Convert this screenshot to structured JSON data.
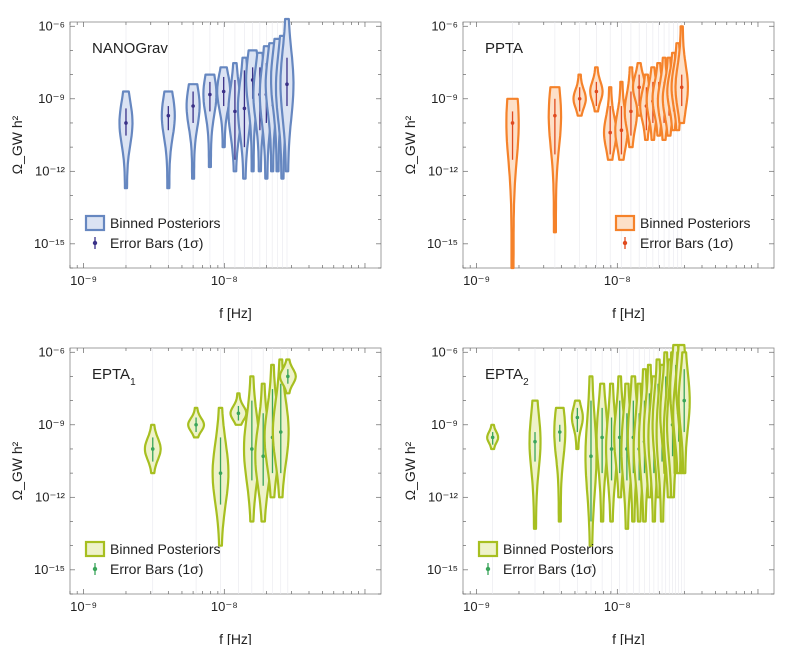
{
  "figure": {
    "description_colors": {
      "nanograv_line": "#6687c0",
      "nanograv_fill": "#dbe3f3",
      "nanograv_err": "#3a3188",
      "ppta_line": "#f5822a",
      "ppta_fill": "#fde0c8",
      "ppta_err": "#e04a1e",
      "epta_line": "#a7bf20",
      "epta_fill": "#eef2c9",
      "epta_err": "#3aa55a"
    }
  },
  "chart_data": [
    {
      "type": "violin",
      "title": "NANOGrav",
      "xlabel": "f [Hz]",
      "ylabel": "Ω_GW h²",
      "xscale": "log",
      "yscale": "log",
      "xlim": [
        8e-10,
        1.3e-07
      ],
      "ylim": [
        1e-16,
        1.5e-06
      ],
      "x_ticks": [
        "10⁻⁹",
        "10⁻⁸"
      ],
      "y_ticks": [
        "10⁻¹⁵",
        "10⁻¹²",
        "10⁻⁹",
        "10⁻⁶"
      ],
      "legend": [
        "Binned Posteriors",
        "Error Bars (1σ)"
      ],
      "legend_position": "bottom-left",
      "series": [
        {
          "name": "NANOGrav",
          "f": [
            2e-09,
            4e-09,
            6e-09,
            7.9e-09,
            9.9e-09,
            1.19e-08,
            1.39e-08,
            1.59e-08,
            1.79e-08,
            1.99e-08,
            2.19e-08,
            2.39e-08,
            2.59e-08,
            2.79e-08
          ],
          "median": [
            1e-10,
            2e-10,
            5e-10,
            1.5e-09,
            2e-09,
            3e-10,
            4e-10,
            6e-09,
            1.5e-09,
            1.5e-09,
            4e-09,
            6e-09,
            3e-09,
            4e-09
          ],
          "err_low": [
            3e-11,
            5e-11,
            1e-10,
            3e-10,
            5e-10,
            3e-12,
            1e-11,
            1e-09,
            5e-11,
            1e-10,
            5e-10,
            5e-10,
            3e-10,
            5e-10
          ],
          "err_high": [
            4e-10,
            5e-10,
            2e-09,
            5e-09,
            8e-09,
            6e-09,
            1.5e-08,
            2e-08,
            2e-08,
            3e-08,
            3e-08,
            4e-08,
            4e-08,
            5e-08
          ],
          "low": [
            2e-13,
            2e-13,
            5e-13,
            1.5e-12,
            1e-11,
            1e-12,
            5e-13,
            1e-12,
            1e-12,
            5e-13,
            1e-12,
            1e-12,
            5e-13,
            1e-12
          ],
          "high": [
            2e-09,
            2e-09,
            4e-09,
            1e-08,
            2e-08,
            3e-08,
            5e-08,
            1e-07,
            8e-08,
            1.5e-07,
            2e-07,
            3e-07,
            4e-07,
            2e-06
          ]
        }
      ]
    },
    {
      "type": "violin",
      "title": "PPTA",
      "xlabel": "f [Hz]",
      "ylabel": "Ω_GW h²",
      "xscale": "log",
      "yscale": "log",
      "xlim": [
        8e-10,
        1.3e-07
      ],
      "ylim": [
        1e-16,
        1.5e-06
      ],
      "x_ticks": [
        "10⁻⁹",
        "10⁻⁸"
      ],
      "y_ticks": [
        "10⁻¹⁵",
        "10⁻¹²",
        "10⁻⁹",
        "10⁻⁶"
      ],
      "legend": [
        "Binned Posteriors",
        "Error Bars (1σ)"
      ],
      "legend_position": "bottom-right",
      "series": [
        {
          "name": "PPTA",
          "f": [
            1.8e-09,
            3.6e-09,
            5.4e-09,
            7.1e-09,
            8.9e-09,
            1.07e-08,
            1.25e-08,
            1.43e-08,
            1.61e-08,
            1.79e-08,
            1.97e-08,
            2.15e-08,
            2.33e-08,
            2.51e-08,
            2.69e-08,
            2.87e-08
          ],
          "median": [
            1e-10,
            2e-10,
            1e-09,
            2e-09,
            4e-11,
            5e-11,
            3e-10,
            3e-09,
            5e-10,
            8e-10,
            1e-09,
            8e-10,
            1e-09,
            2e-09,
            3e-09,
            3e-09
          ],
          "err_low": [
            3e-12,
            5e-12,
            3e-10,
            5e-10,
            5e-12,
            5e-12,
            3e-11,
            5e-10,
            5e-11,
            1e-10,
            2e-10,
            1e-10,
            2e-10,
            3e-10,
            5e-10,
            5e-10
          ],
          "err_high": [
            3e-10,
            1e-09,
            3e-09,
            5e-09,
            5e-10,
            5e-10,
            2e-09,
            1e-08,
            3e-09,
            5e-09,
            5e-09,
            5e-09,
            8e-09,
            1e-08,
            2e-08,
            1e-08
          ],
          "low": [
            1e-16,
            3e-15,
            2e-10,
            3e-10,
            3e-12,
            3e-12,
            1e-11,
            2e-10,
            2e-11,
            2e-11,
            3e-11,
            2e-11,
            3e-11,
            5e-11,
            5e-11,
            1e-10
          ],
          "high": [
            1e-09,
            3e-09,
            1e-08,
            2e-08,
            3e-09,
            5e-09,
            2e-08,
            3e-08,
            1e-08,
            2e-08,
            3e-08,
            5e-08,
            5e-08,
            8e-08,
            2e-07,
            1e-06
          ]
        }
      ]
    },
    {
      "type": "violin",
      "title": "EPTA",
      "title_subscript": "1",
      "xlabel": "f [Hz]",
      "ylabel": "Ω_GW h²",
      "xscale": "log",
      "yscale": "log",
      "xlim": [
        8e-10,
        1.3e-07
      ],
      "ylim": [
        1e-16,
        1.5e-06
      ],
      "x_ticks": [
        "10⁻⁹",
        "10⁻⁸"
      ],
      "y_ticks": [
        "10⁻¹⁵",
        "10⁻¹²",
        "10⁻⁹",
        "10⁻⁶"
      ],
      "legend": [
        "Binned Posteriors",
        "Error Bars (1σ)"
      ],
      "legend_position": "bottom-left",
      "series": [
        {
          "name": "EPTA₁",
          "f": [
            3.1e-09,
            6.3e-09,
            9.4e-09,
            1.26e-08,
            1.57e-08,
            1.89e-08,
            2.2e-08,
            2.52e-08,
            2.83e-08
          ],
          "median": [
            1e-10,
            1e-09,
            1e-11,
            3e-09,
            1e-10,
            5e-11,
            3e-10,
            5e-10,
            1e-07
          ],
          "err_low": [
            3e-11,
            5e-10,
            5e-13,
            1.5e-09,
            5e-12,
            3e-12,
            1e-11,
            1e-11,
            5e-08
          ],
          "err_high": [
            3e-10,
            2e-09,
            3e-10,
            6e-09,
            1e-08,
            3e-09,
            3e-08,
            5e-08,
            2e-07
          ],
          "low": [
            1e-11,
            3e-10,
            1e-14,
            1e-09,
            1e-13,
            1e-13,
            1e-12,
            1e-12,
            2e-08
          ],
          "high": [
            1e-09,
            5e-09,
            5e-09,
            2e-08,
            1e-07,
            5e-08,
            3e-07,
            5e-07,
            5e-07
          ]
        }
      ]
    },
    {
      "type": "violin",
      "title": "EPTA",
      "title_subscript": "2",
      "xlabel": "f [Hz]",
      "ylabel": "Ω_GW h²",
      "xscale": "log",
      "yscale": "log",
      "xlim": [
        8e-10,
        1.3e-07
      ],
      "ylim": [
        1e-16,
        1.5e-06
      ],
      "x_ticks": [
        "10⁻⁹",
        "10⁻⁸"
      ],
      "y_ticks": [
        "10⁻¹⁵",
        "10⁻¹²",
        "10⁻⁹",
        "10⁻⁶"
      ],
      "legend": [
        "Binned Posteriors",
        "Error Bars (1σ)"
      ],
      "legend_position": "bottom-left",
      "series": [
        {
          "name": "EPTA₂",
          "f": [
            1.3e-09,
            2.6e-09,
            3.9e-09,
            5.2e-09,
            6.5e-09,
            7.8e-09,
            9.1e-09,
            1.04e-08,
            1.17e-08,
            1.3e-08,
            1.43e-08,
            1.56e-08,
            1.69e-08,
            1.82e-08,
            1.95e-08,
            2.08e-08,
            2.21e-08,
            2.34e-08,
            2.47e-08,
            2.6e-08,
            2.73e-08,
            2.86e-08,
            2.99e-08
          ],
          "median": [
            3e-10,
            2e-10,
            5e-10,
            2e-09,
            5e-11,
            3e-10,
            1e-10,
            3e-10,
            1e-10,
            3e-10,
            1e-10,
            2e-10,
            5e-10,
            3e-10,
            1e-09,
            5e-10,
            3e-09,
            5e-10,
            1e-09,
            3e-08,
            3e-09,
            5e-08,
            1e-08
          ],
          "err_low": [
            1.5e-10,
            3e-11,
            2e-10,
            5e-10,
            1e-13,
            1e-11,
            5e-12,
            1e-11,
            5e-12,
            1e-11,
            5e-12,
            1e-11,
            3e-11,
            1e-11,
            5e-11,
            3e-11,
            2e-10,
            3e-11,
            5e-11,
            1e-09,
            2e-10,
            3e-09,
            5e-10
          ],
          "err_high": [
            5e-10,
            5e-10,
            1e-09,
            5e-09,
            1e-08,
            5e-09,
            2e-09,
            1e-08,
            3e-09,
            1e-08,
            3e-09,
            1e-08,
            2e-08,
            1e-08,
            5e-08,
            3e-08,
            1e-07,
            3e-08,
            5e-08,
            3e-07,
            1e-07,
            3e-07,
            2e-07
          ],
          "low": [
            1e-10,
            5e-14,
            1e-13,
            1e-10,
            1e-14,
            1e-13,
            1e-13,
            1e-12,
            5e-14,
            1e-13,
            1e-13,
            1e-13,
            1e-12,
            1e-13,
            1e-12,
            1e-13,
            1e-11,
            1e-12,
            1e-12,
            1e-11,
            1e-11,
            1e-11,
            1e-11
          ],
          "high": [
            1e-09,
            1e-08,
            5e-09,
            1e-08,
            1e-07,
            5e-08,
            5e-08,
            1e-07,
            5e-08,
            1e-07,
            5e-08,
            2e-07,
            3e-07,
            1e-07,
            5e-07,
            3e-07,
            1e-06,
            5e-07,
            1e-06,
            2e-06,
            1e-06,
            2e-06,
            1e-06
          ]
        }
      ]
    }
  ]
}
